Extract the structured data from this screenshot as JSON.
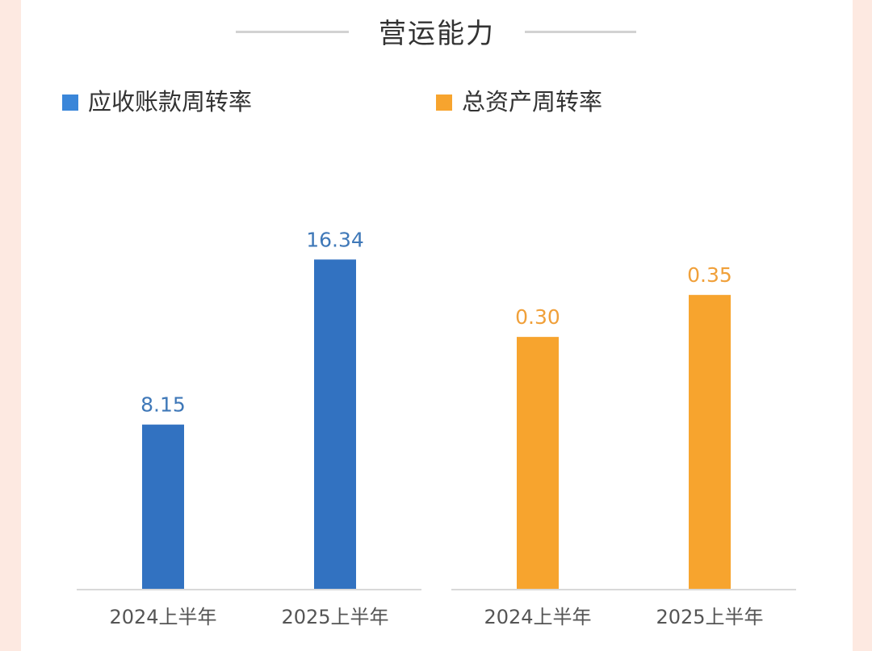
{
  "header": {
    "title": "营运能力"
  },
  "legend": [
    {
      "label": "应收账款周转率",
      "color": "#3a86d9"
    },
    {
      "label": "总资产周转率",
      "color": "#f7a42e"
    }
  ],
  "chart_data": [
    {
      "type": "bar",
      "categories": [
        "2024上半年",
        "2025上半年"
      ],
      "series": [
        {
          "name": "应收账款周转率",
          "values": [
            8.15,
            16.34
          ],
          "labels": [
            "8.15",
            "16.34"
          ],
          "color": "#3272c1",
          "label_color": "#3f78b8"
        }
      ],
      "title": "",
      "xlabel": "",
      "ylabel": "",
      "ylim": [
        0,
        20
      ],
      "grid": false,
      "legend_position": "top-left"
    },
    {
      "type": "bar",
      "categories": [
        "2024上半年",
        "2025上半年"
      ],
      "series": [
        {
          "name": "总资产周转率",
          "values": [
            0.3,
            0.35
          ],
          "labels": [
            "0.30",
            "0.35"
          ],
          "color": "#f7a42e",
          "label_color": "#f0a03a"
        }
      ],
      "title": "",
      "xlabel": "",
      "ylabel": "",
      "ylim": [
        0,
        0.48
      ],
      "grid": false,
      "legend_position": "top-left"
    }
  ],
  "styles": {
    "page_background": "#fde9e1",
    "card_background": "#ffffff",
    "axis_color": "#d9d9d9",
    "tick_label_color": "#555555"
  }
}
